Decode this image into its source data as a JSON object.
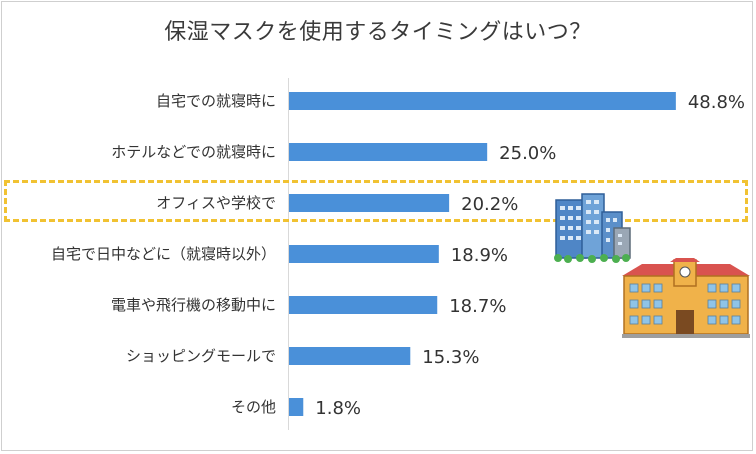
{
  "chart_data": {
    "type": "bar",
    "orientation": "horizontal",
    "title": "保湿マスクを使用するタイミングはいつ？",
    "categories": [
      "自宅での就寝時に",
      "ホテルなどでの就寝時に",
      "オフィスや学校で",
      "自宅で日中などに（就寝時以外）",
      "電車や飛行機の移動中に",
      "ショッピングモールで",
      "その他"
    ],
    "values": [
      48.8,
      25.0,
      20.2,
      18.9,
      18.7,
      15.3,
      1.8
    ],
    "value_labels": [
      "48.8%",
      "25.0%",
      "20.2%",
      "18.9%",
      "18.7%",
      "15.3%",
      "1.8%"
    ],
    "unit": "%",
    "xlim": [
      0,
      55
    ],
    "highlighted_category": "オフィスや学校で",
    "bar_color": "#4a90d9",
    "highlight_color": "#f1c232",
    "grid": false,
    "legend": "none"
  },
  "decor": {
    "illustration_1": "office-buildings-icon",
    "illustration_2": "school-building-icon"
  }
}
